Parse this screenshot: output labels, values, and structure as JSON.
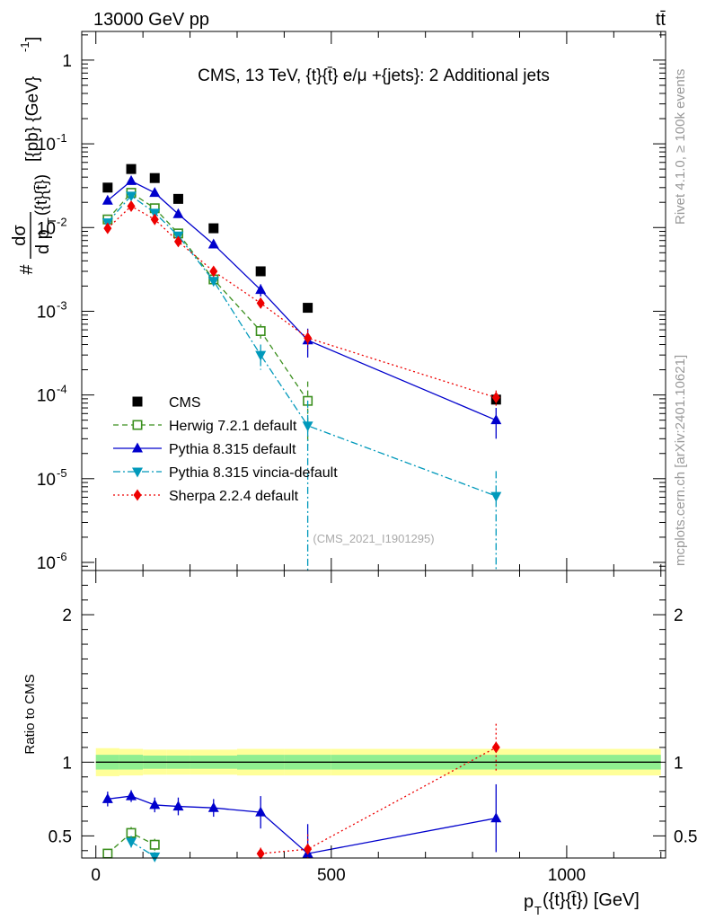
{
  "header": {
    "energy_label": "13000 GeV pp",
    "process_label": "tt̄",
    "rivet_label": "Rivet 4.1.0, ≥ 100k events",
    "mcplots_label": "mcplots.cern.ch [arXiv:2401.10621]"
  },
  "chart_data": [
    {
      "type": "scatter",
      "panel": "main",
      "title": "CMS, 13 TeV, {t}{t̄} e/μ +{jets}: 2 Additional jets",
      "ylabel": "#dσ/dp_T({t}{t̄}) [{pb} {GeV}^-1]",
      "ylabel_num": "dσ",
      "ylabel_den": "d p",
      "ylabel_den_sub": "T",
      "ylabel_den_arg": "({t}{t̄})",
      "ylabel_prefix": "#",
      "ylabel_units": "[{pb} {GeV}",
      "ylabel_exp": "-1",
      "ylabel_close": "]",
      "yscale": "log",
      "ylim": [
        8e-07,
        2.2
      ],
      "xlim": [
        -30,
        1210
      ],
      "y_ticks": [
        {
          "value": 1,
          "label": "1"
        },
        {
          "value": 0.1,
          "base": "10",
          "exp": "-1"
        },
        {
          "value": 0.01,
          "base": "10",
          "exp": "-2"
        },
        {
          "value": 0.001,
          "base": "10",
          "exp": "-3"
        },
        {
          "value": 0.0001,
          "base": "10",
          "exp": "-4"
        },
        {
          "value": 1e-05,
          "base": "10",
          "exp": "-5"
        },
        {
          "value": 1e-06,
          "base": "10",
          "exp": "-6"
        }
      ],
      "watermark": "(CMS_2021_I1901295)",
      "series": [
        {
          "name": "CMS",
          "color": "#000000",
          "marker": "square",
          "line": "none",
          "x": [
            25,
            75,
            125,
            175,
            250,
            350,
            450,
            850
          ],
          "y": [
            0.03,
            0.05,
            0.039,
            0.022,
            0.0098,
            0.003,
            0.0011,
            8.8e-05
          ]
        },
        {
          "name": "Herwig 7.2.1 default",
          "color": "#3b8f1e",
          "marker": "open-square",
          "line": "dashed",
          "x": [
            25,
            75,
            125,
            175,
            250,
            350,
            450
          ],
          "y": [
            0.0125,
            0.026,
            0.017,
            0.0085,
            0.0024,
            0.00058,
            8.5e-05
          ],
          "yerr": [
            0.001,
            0.002,
            0.0015,
            0.0008,
            0.0003,
            0.00012,
            6e-05
          ]
        },
        {
          "name": "Pythia 8.315 default",
          "color": "#0000cc",
          "marker": "triangle-up",
          "line": "solid",
          "x": [
            25,
            75,
            125,
            175,
            250,
            350,
            450,
            850
          ],
          "y": [
            0.021,
            0.036,
            0.026,
            0.0145,
            0.0063,
            0.0018,
            0.00045,
            5e-05
          ],
          "yerr": [
            0.0012,
            0.0018,
            0.0015,
            0.001,
            0.0005,
            0.0003,
            0.00017,
            2e-05
          ]
        },
        {
          "name": "Pythia 8.315 vincia-default",
          "color": "#0099bb",
          "marker": "triangle-down",
          "line": "dashdot",
          "x": [
            25,
            75,
            125,
            175,
            250,
            350,
            450,
            850
          ],
          "y": [
            0.0115,
            0.024,
            0.015,
            0.008,
            0.0023,
            0.0003,
            4.3e-05,
            6.2e-06
          ],
          "yerr": [
            0.001,
            0.0018,
            0.0012,
            0.0007,
            0.0003,
            0.0001,
            4.28e-05,
            6.1e-06
          ]
        },
        {
          "name": "Sherpa 2.2.4 default",
          "color": "#ee0000",
          "marker": "diamond",
          "line": "dotted",
          "x": [
            25,
            75,
            125,
            175,
            250,
            350,
            450,
            850
          ],
          "y": [
            0.0098,
            0.018,
            0.0125,
            0.0068,
            0.003,
            0.00125,
            0.00048,
            9.3e-05
          ],
          "yerr": [
            0.0007,
            0.0012,
            0.001,
            0.0006,
            0.0003,
            0.00012,
            0.00012,
            2e-05
          ]
        }
      ]
    },
    {
      "type": "line",
      "panel": "ratio",
      "ylabel": "Ratio to CMS",
      "xlabel": "p_T({t}{t̄}) [GeV]",
      "xlabel_main": "p",
      "xlabel_sub": "T",
      "xlabel_rest": "({t}{t̄}) [GeV]",
      "ylim": [
        0.35,
        2.3
      ],
      "xlim": [
        -30,
        1210
      ],
      "x_ticks": [
        0,
        500,
        1000
      ],
      "x_tick_labels": [
        "0",
        "500",
        "1000"
      ],
      "y_ticks": [
        0.5,
        1,
        2
      ],
      "y_tick_labels": [
        "0.5",
        "1",
        "2"
      ],
      "band_edges": [
        0,
        50,
        100,
        150,
        200,
        300,
        400,
        500,
        1200
      ],
      "band_inner": [
        0.05,
        0.05,
        0.045,
        0.045,
        0.045,
        0.05,
        0.05,
        0.05
      ],
      "band_outer": [
        0.095,
        0.09,
        0.085,
        0.085,
        0.085,
        0.09,
        0.09,
        0.09
      ],
      "band_colors": {
        "inner": "#90ee90",
        "outer": "#ffff99"
      },
      "series": [
        {
          "name": "Pythia 8.315 default",
          "color": "#0000cc",
          "marker": "triangle-up",
          "line": "solid",
          "x": [
            25,
            75,
            125,
            175,
            250,
            350,
            450,
            850
          ],
          "y": [
            0.75,
            0.77,
            0.71,
            0.7,
            0.69,
            0.66,
            0.38,
            0.62
          ],
          "yerr": [
            0.05,
            0.04,
            0.05,
            0.06,
            0.06,
            0.11,
            0.2,
            0.23
          ]
        },
        {
          "name": "Herwig 7.2.1 default",
          "color": "#3b8f1e",
          "marker": "open-square",
          "line": "dashed",
          "x": [
            25,
            75,
            125
          ],
          "y": [
            0.38,
            0.52,
            0.44
          ],
          "yerr": [
            0.03,
            0.04,
            0.04
          ]
        },
        {
          "name": "Pythia 8.315 vincia-default",
          "color": "#0099bb",
          "marker": "triangle-down",
          "line": "dashdot",
          "x": [
            75,
            125
          ],
          "y": [
            0.46,
            0.36
          ],
          "yerr": [
            0.04,
            0.03
          ]
        },
        {
          "name": "Sherpa 2.2.4 default",
          "color": "#ee0000",
          "marker": "diamond",
          "line": "dotted",
          "x": [
            350,
            450,
            850
          ],
          "y": [
            0.38,
            0.41,
            1.1
          ],
          "yerr": [
            0.04,
            0.1,
            0.16
          ]
        }
      ]
    }
  ]
}
